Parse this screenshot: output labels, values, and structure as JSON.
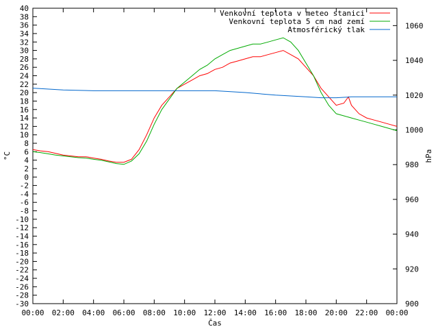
{
  "chart_data": {
    "type": "line",
    "xlabel": "Čas",
    "ylabel_left": "°C",
    "ylabel_right": "hPa",
    "x_ticks": [
      "00:00",
      "02:00",
      "04:00",
      "06:00",
      "08:00",
      "10:00",
      "12:00",
      "14:00",
      "16:00",
      "18:00",
      "20:00",
      "22:00",
      "00:00"
    ],
    "xlim_hours": [
      0,
      24
    ],
    "ylim_left": [
      -30,
      40
    ],
    "ylim_right": [
      900,
      1070
    ],
    "y_ticks_left_step": 2,
    "y_ticks_right": [
      900,
      920,
      940,
      960,
      980,
      1000,
      1020,
      1040,
      1060
    ],
    "grid": false,
    "legend_position": "top-right",
    "series": [
      {
        "name": "Venkovní teplota v meteo stanici",
        "axis": "left",
        "color": "#ff0000",
        "x": [
          0,
          0.5,
          1,
          1.5,
          2,
          2.5,
          3,
          3.5,
          4,
          4.5,
          5,
          5.5,
          6,
          6.5,
          7,
          7.5,
          8,
          8.5,
          9,
          9.5,
          10,
          10.5,
          11,
          11.5,
          12,
          12.5,
          13,
          13.5,
          14,
          14.5,
          15,
          15.5,
          16,
          16.5,
          17,
          17.5,
          18,
          18.5,
          19,
          19.5,
          20,
          20.5,
          20.8,
          21,
          21.5,
          22,
          22.5,
          23,
          23.5,
          24
        ],
        "values": [
          6.5,
          6.2,
          6.0,
          5.6,
          5.2,
          5.0,
          4.8,
          4.8,
          4.5,
          4.2,
          3.8,
          3.5,
          3.5,
          4.2,
          6.5,
          10,
          14,
          17,
          19,
          21,
          22,
          23,
          24,
          24.5,
          25.5,
          26,
          27,
          27.5,
          28,
          28.5,
          28.5,
          29,
          29.5,
          30,
          29,
          28,
          26,
          24,
          21,
          19,
          17,
          17.5,
          19,
          17,
          15,
          14,
          13.5,
          13,
          12.5,
          12
        ]
      },
      {
        "name": "Venkovní teplota 5 cm nad zemí",
        "axis": "left",
        "color": "#00aa00",
        "x": [
          0,
          0.5,
          1,
          1.5,
          2,
          2.5,
          3,
          3.5,
          4,
          4.5,
          5,
          5.5,
          6,
          6.5,
          7,
          7.5,
          8,
          8.5,
          9,
          9.5,
          10,
          10.5,
          11,
          11.5,
          12,
          12.5,
          13,
          13.5,
          14,
          14.5,
          15,
          15.5,
          16,
          16.5,
          17,
          17.5,
          18,
          18.5,
          19,
          19.5,
          20,
          20.5,
          21,
          21.5,
          22,
          22.5,
          23,
          23.5,
          24
        ],
        "values": [
          6.0,
          5.8,
          5.5,
          5.2,
          5.0,
          4.8,
          4.6,
          4.5,
          4.2,
          4.0,
          3.6,
          3.2,
          3.0,
          3.8,
          5.5,
          8.5,
          12.5,
          16,
          18.5,
          21,
          22.5,
          24,
          25.5,
          26.5,
          28,
          29,
          30,
          30.5,
          31,
          31.5,
          31.5,
          32,
          32.5,
          33,
          32,
          30,
          27,
          24,
          20,
          17,
          15,
          14.5,
          14,
          13.5,
          13,
          12.5,
          12,
          11.5,
          11
        ]
      },
      {
        "name": "Atmosférický tlak",
        "axis": "right",
        "color": "#0066cc",
        "x": [
          0,
          2,
          4,
          6,
          8,
          10,
          12,
          14,
          16,
          18,
          19,
          20,
          21,
          22,
          23,
          24
        ],
        "values": [
          1024,
          1023,
          1022.5,
          1022.5,
          1022.5,
          1022.5,
          1022.5,
          1021.5,
          1020,
          1019,
          1018.5,
          1018.5,
          1019,
          1019,
          1019,
          1019
        ]
      }
    ]
  }
}
